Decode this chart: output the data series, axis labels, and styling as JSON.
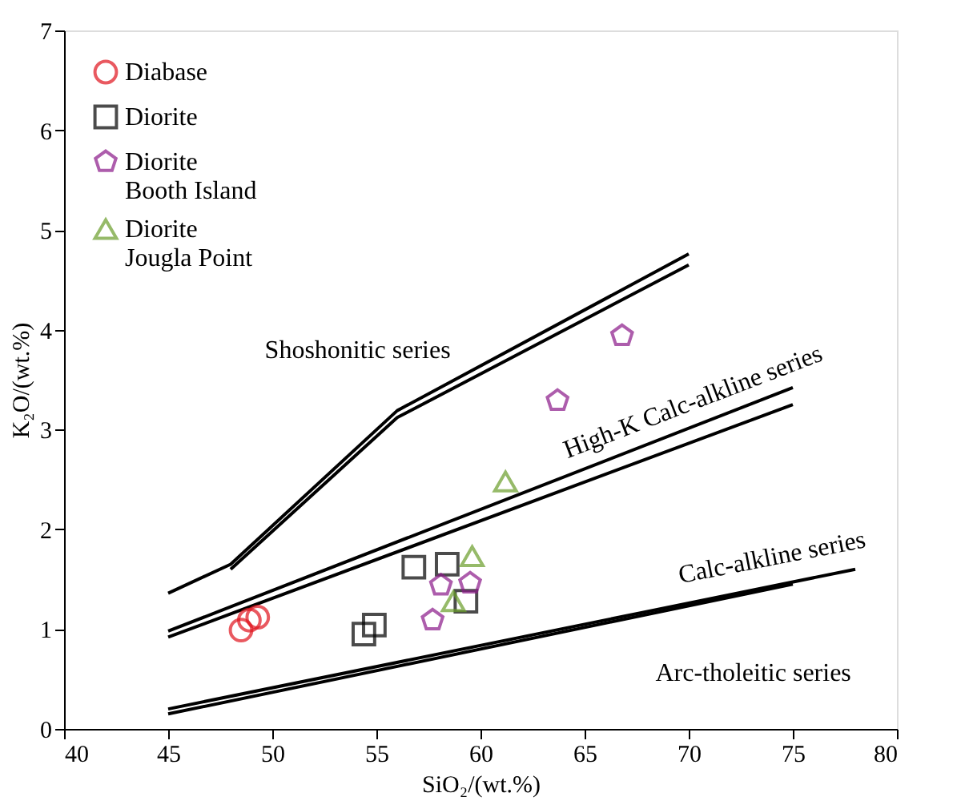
{
  "chart_data": {
    "type": "scatter",
    "xlabel": "SiO₂/(wt.%)",
    "ylabel": "K₂O/(wt.%)",
    "xlim": [
      40,
      80
    ],
    "ylim": [
      0,
      7
    ],
    "xticks": [
      40,
      45,
      50,
      55,
      60,
      65,
      70,
      75,
      80
    ],
    "yticks": [
      {
        "value": 0,
        "label": "0"
      },
      {
        "value": 1,
        "label": "1"
      },
      {
        "value": 2,
        "label": "2"
      },
      {
        "value": 3,
        "label": "3"
      },
      {
        "value": 4,
        "label": "4"
      },
      {
        "value": 5,
        "label": "5"
      },
      {
        "value": 6,
        "label": "6"
      },
      {
        "value": 7,
        "label": "7"
      }
    ],
    "grid": false,
    "legend": "top left",
    "series": [
      {
        "name": "Diabase",
        "color": "#e0141e",
        "marker": "circle",
        "x": [
          48.5,
          48.9,
          49.3
        ],
        "values": [
          0.99,
          1.09,
          1.12
        ]
      },
      {
        "name": "Diorite",
        "color": "#000000",
        "marker": "square",
        "x": [
          54.4,
          54.9,
          56.8,
          58.4,
          59.3
        ],
        "values": [
          0.95,
          1.04,
          1.62,
          1.65,
          1.28
        ]
      },
      {
        "name": "Diorite\nBooth Island",
        "color": "#8b1a89",
        "x": [
          57.7,
          58.1,
          59.5,
          63.7,
          66.8
        ],
        "values": [
          1.09,
          1.44,
          1.46,
          3.29,
          3.94
        ]
      },
      {
        "name": "Diorite\nJougla Point",
        "color": "#6a9e2a",
        "marker": "triangle",
        "x": [
          58.7,
          59.6,
          61.2
        ],
        "values": [
          1.28,
          1.73,
          2.48
        ]
      },
      {
        "type": "line",
        "color": "#000000",
        "x": [
          45,
          48,
          56,
          70
        ],
        "values": [
          1.36,
          1.65,
          3.19,
          4.76
        ]
      },
      {
        "type": "line",
        "color": "#000000",
        "x": [
          48,
          56,
          70
        ],
        "values": [
          1.6,
          3.12,
          4.65
        ]
      },
      {
        "type": "line",
        "color": "#000000",
        "x": [
          45,
          75
        ],
        "values": [
          0.98,
          3.42
        ]
      },
      {
        "type": "line",
        "color": "#000000",
        "x": [
          45,
          75
        ],
        "values": [
          0.92,
          3.25
        ]
      },
      {
        "type": "line",
        "color": "#000000",
        "x": [
          45,
          78
        ],
        "values": [
          0.2,
          1.6
        ]
      },
      {
        "type": "line",
        "color": "#000000",
        "x": [
          45,
          75
        ],
        "values": [
          0.15,
          1.45
        ]
      }
    ],
    "annotations": [
      "Shoshonitic series",
      "High-K Calc-alkline series",
      "Calc-alkline series",
      "Arc-tholeitic series"
    ]
  }
}
